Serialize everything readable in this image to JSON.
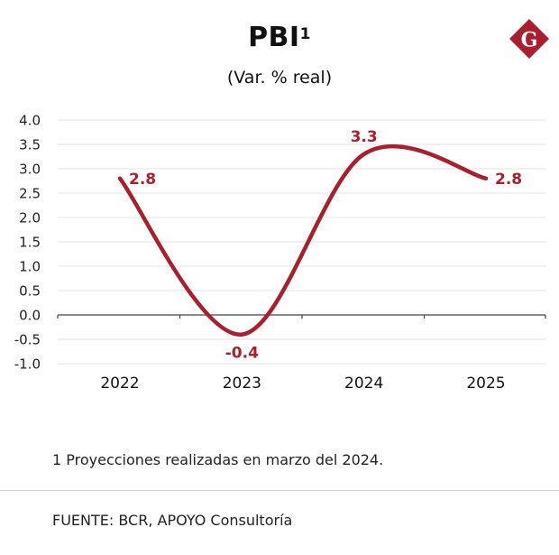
{
  "colors": {
    "accent": "#a91f2e",
    "grid": "#e3e3e3",
    "axis": "#444444"
  },
  "header": {
    "title": "PBI",
    "title_superscript": "1",
    "subtitle": "(Var. % real)",
    "logo_letter": "G",
    "logo_icon": "gestion-logo-icon"
  },
  "chart_data": {
    "type": "line",
    "title": "PBI",
    "subtitle": "(Var. % real)",
    "categories": [
      "2022",
      "2023",
      "2024",
      "2025"
    ],
    "series": [
      {
        "name": "PBI",
        "values": [
          2.8,
          -0.4,
          3.3,
          2.8
        ],
        "labels": [
          "2.8",
          "-0.4",
          "3.3",
          "2.8"
        ]
      }
    ],
    "y_ticks": [
      "4.0",
      "3.5",
      "3.0",
      "2.5",
      "2.0",
      "1.5",
      "1.0",
      "0.5",
      "0.0",
      "-0.5",
      "-1.0"
    ],
    "y_tick_values": [
      4.0,
      3.5,
      3.0,
      2.5,
      2.0,
      1.5,
      1.0,
      0.5,
      0.0,
      -0.5,
      -1.0
    ],
    "ylim": [
      -1.0,
      4.0
    ],
    "grid": true,
    "xlabel": "",
    "ylabel": ""
  },
  "footer": {
    "footnote": "1 Proyecciones realizadas en marzo del 2024.",
    "source": "FUENTE: BCR, APOYO Consultoría"
  }
}
